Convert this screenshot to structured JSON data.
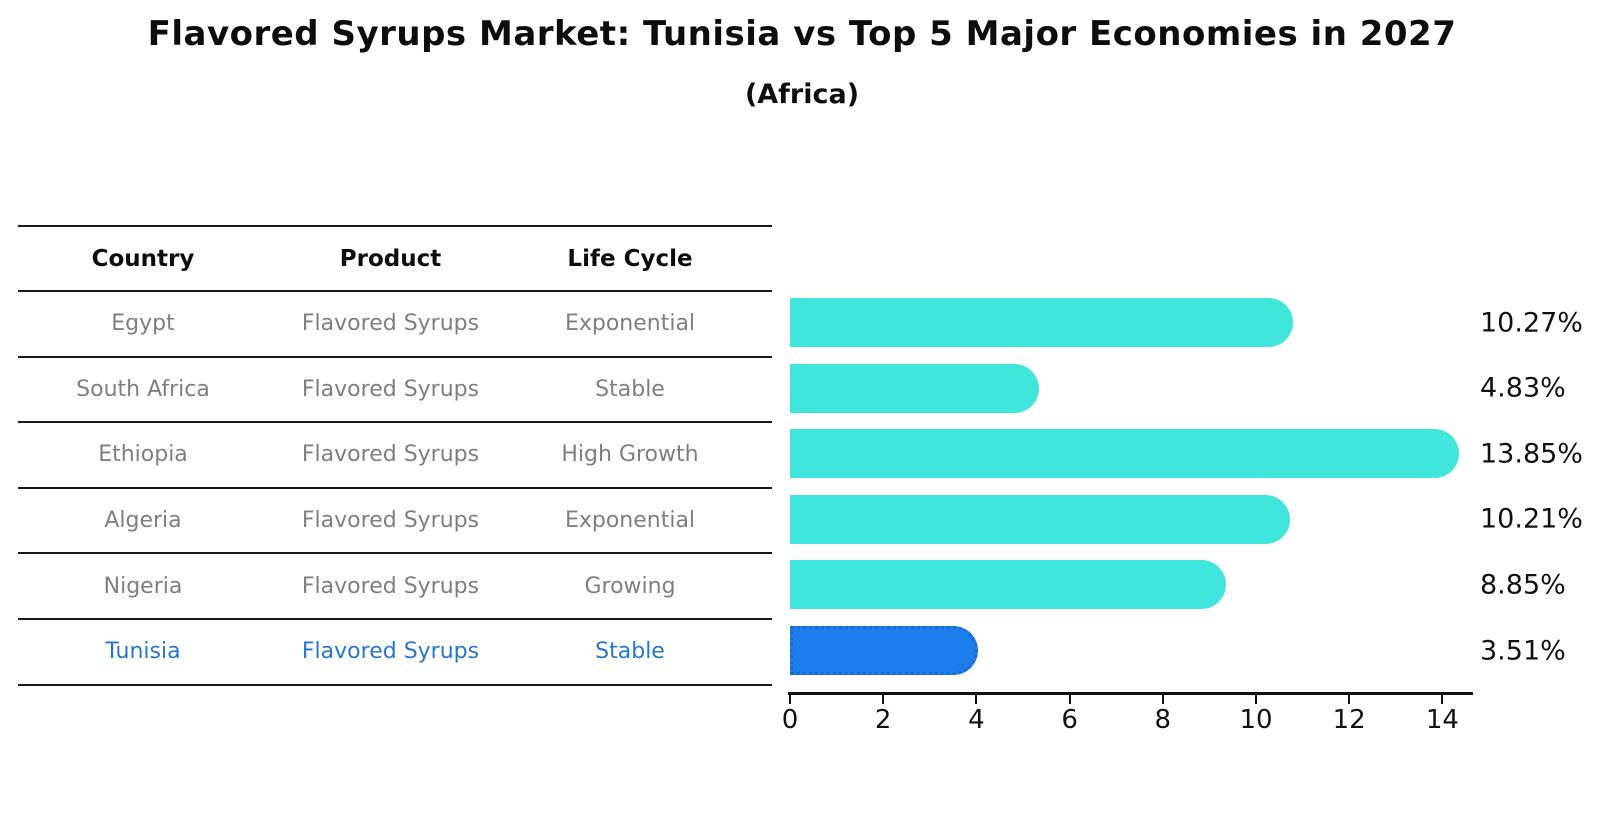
{
  "header": {
    "title": "Flavored Syrups Market: Tunisia vs Top 5 Major Economies in 2027",
    "subtitle": "(Africa)"
  },
  "table": {
    "columns": [
      "Country",
      "Product",
      "Life Cycle"
    ],
    "rows": [
      {
        "country": "Egypt",
        "product": "Flavored Syrups",
        "life_cycle": "Exponential",
        "highlight": false
      },
      {
        "country": "South Africa",
        "product": "Flavored Syrups",
        "life_cycle": "Stable",
        "highlight": false
      },
      {
        "country": "Ethiopia",
        "product": "Flavored Syrups",
        "life_cycle": "High Growth",
        "highlight": false
      },
      {
        "country": "Algeria",
        "product": "Flavored Syrups",
        "life_cycle": "Exponential",
        "highlight": false
      },
      {
        "country": "Nigeria",
        "product": "Flavored Syrups",
        "life_cycle": "Growing",
        "highlight": false
      },
      {
        "country": "Tunisia",
        "product": "Flavored Syrups",
        "life_cycle": "Stable",
        "highlight": true
      }
    ]
  },
  "chart_data": {
    "type": "bar",
    "orientation": "horizontal",
    "title": "Flavored Syrups Market: Tunisia vs Top 5 Major Economies in 2027",
    "subtitle": "(Africa)",
    "categories": [
      "Egypt",
      "South Africa",
      "Ethiopia",
      "Algeria",
      "Nigeria",
      "Tunisia"
    ],
    "values": [
      10.27,
      4.83,
      13.85,
      10.21,
      8.85,
      3.51
    ],
    "value_labels": [
      "10.27%",
      "4.83%",
      "13.85%",
      "10.21%",
      "8.85%",
      "3.51%"
    ],
    "xlabel": "",
    "ylabel": "",
    "x_ticks": [
      0,
      2,
      4,
      6,
      8,
      10,
      12,
      14
    ],
    "xlim": [
      0,
      14.6
    ],
    "grid": false,
    "legend": "none",
    "bar_color": "#40E5DC",
    "highlight_index": 5,
    "highlight_bar_color": "#1E7EEC",
    "highlight_bar_border_color": "#1A6AD8",
    "highlight_text_color": "#2878C8",
    "row_text_color": "#7F7F7F",
    "axis_color": "#111111"
  }
}
